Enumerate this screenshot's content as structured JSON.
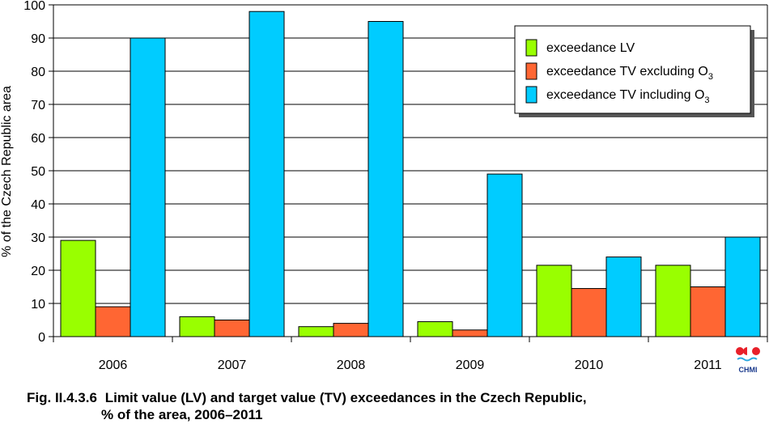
{
  "chart_data": {
    "type": "bar",
    "categories": [
      "2006",
      "2007",
      "2008",
      "2009",
      "2010",
      "2011"
    ],
    "series": [
      {
        "name": "exceedance LV",
        "color": "#99ff00",
        "values": [
          29,
          6,
          3,
          4.5,
          21.5,
          21.5
        ]
      },
      {
        "name_parts": [
          "exceedance TV excluding O",
          "3"
        ],
        "color": "#ff6633",
        "values": [
          9,
          5,
          4,
          2,
          14.5,
          15
        ]
      },
      {
        "name_parts": [
          "exceedance TV including O",
          "3"
        ],
        "color": "#00ccff",
        "values": [
          90,
          98,
          95,
          49,
          24,
          30
        ]
      }
    ],
    "ylabel": "% of the Czech Republic area",
    "ylim": [
      0,
      100
    ],
    "yticks": [
      "0",
      "10",
      "20",
      "30",
      "40",
      "50",
      "60",
      "70",
      "80",
      "90",
      "100"
    ],
    "grid": true,
    "legend_position": "top-right"
  },
  "caption": {
    "label": "Fig. II.4.3.6",
    "line1": "Limit value (LV) and target value (TV) exceedances in the Czech Republic,",
    "line2": "% of the area, 2006–2011"
  },
  "logo": {
    "text": "CHMI"
  }
}
